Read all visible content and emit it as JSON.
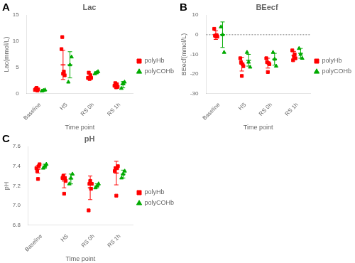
{
  "chart_data": [
    {
      "type": "scatter",
      "title": "Lac",
      "annotations": [
        "A"
      ],
      "x_label": "Time point",
      "y_label": "Lac(mmol/L)",
      "categories": [
        "Baseline",
        "HS",
        "RS 0h",
        "RS 1h"
      ],
      "ylim": [
        0,
        15
      ],
      "yticks": [
        0,
        5,
        10,
        15
      ],
      "grid": false,
      "legend": "right",
      "series": [
        {
          "name": "polyHb",
          "color": "#FF0000",
          "marker": "square",
          "values": [
            [
              0.7,
              0.9,
              1.1,
              0.6,
              0.8
            ],
            [
              8.5,
              10.8,
              3.8,
              4.2,
              3.5
            ],
            [
              3.0,
              4.0,
              2.8,
              3.5,
              3.0
            ],
            [
              1.5,
              2.0,
              1.2,
              1.8,
              1.3
            ]
          ],
          "mean": [
            0.82,
            5.5,
            3.3,
            1.6
          ],
          "error": [
            0.2,
            2.8,
            0.5,
            0.35
          ]
        },
        {
          "name": "polyCOHb",
          "color": "#00AA00",
          "marker": "triangle",
          "values": [
            [
              0.5,
              0.6,
              0.7
            ],
            [
              2.2,
              5.5,
              7.0
            ],
            [
              3.8,
              4.0,
              4.2
            ],
            [
              1.0,
              2.0,
              2.2
            ]
          ],
          "mean": [
            0.6,
            5.5,
            4.0,
            1.7
          ],
          "error": [
            0.1,
            2.5,
            0.2,
            0.6
          ]
        }
      ]
    },
    {
      "type": "scatter",
      "title": "BEecf",
      "annotations": [
        "B"
      ],
      "x_label": "Time point",
      "y_label": "BEecf(mmol/L)",
      "categories": [
        "Baseline",
        "HS",
        "RS 0h",
        "RS 1h"
      ],
      "ylim": [
        -30,
        10
      ],
      "yticks": [
        -30,
        -20,
        -10,
        0,
        10
      ],
      "grid": false,
      "legend": "right",
      "reference_lines": [
        {
          "y": 0,
          "color": "#808080",
          "line_style": "dotted"
        }
      ],
      "series": [
        {
          "name": "polyHb",
          "color": "#FF0000",
          "marker": "square",
          "values": [
            [
              3.0,
              -0.5,
              -0.8,
              -0.2,
              -1.0
            ],
            [
              -12.0,
              -14.0,
              -21.0,
              -15.0,
              -16.0
            ],
            [
              -12.0,
              -14.0,
              -19.0,
              -14.5,
              -15.0
            ],
            [
              -8.0,
              -13.0,
              -11.0,
              -10.0,
              -12.0
            ]
          ],
          "mean": [
            -0.2,
            -15.0,
            -14.5,
            -10.5
          ],
          "error": [
            2.2,
            3.5,
            2.5,
            2.0
          ]
        },
        {
          "name": "polyCOHb",
          "color": "#00AA00",
          "marker": "triangle",
          "values": [
            [
              4.0,
              0.0,
              -9.0
            ],
            [
              -9.0,
              -14.0,
              -16.5
            ],
            [
              -9.0,
              -12.5,
              -16.0
            ],
            [
              -7.0,
              -10.0,
              -12.0
            ]
          ],
          "mean": [
            0.0,
            -13.0,
            -12.5,
            -9.5
          ],
          "error": [
            6.5,
            3.0,
            3.0,
            2.5
          ]
        }
      ]
    },
    {
      "type": "scatter",
      "title": "pH",
      "annotations": [
        "C"
      ],
      "x_label": "Time point",
      "y_label": "pH",
      "categories": [
        "Baseline",
        "HS",
        "RS 0h",
        "RS 1h"
      ],
      "ylim": [
        6.8,
        7.6
      ],
      "yticks": [
        6.8,
        {
          "value": 7.0,
          "label": "7.0"
        },
        7.2,
        7.4,
        7.6
      ],
      "grid": false,
      "legend": "right",
      "series": [
        {
          "name": "polyHb",
          "color": "#FF0000",
          "marker": "square",
          "values": [
            [
              7.38,
              7.35,
              7.27,
              7.4,
              7.42
            ],
            [
              7.28,
              7.3,
              7.12,
              7.28,
              7.25
            ],
            [
              6.95,
              7.22,
              7.25,
              7.17,
              7.22
            ],
            [
              7.35,
              7.38,
              7.1,
              7.38,
              7.4
            ]
          ],
          "mean": [
            7.37,
            7.25,
            7.18,
            7.33
          ],
          "error": [
            0.04,
            0.07,
            0.12,
            0.12
          ]
        },
        {
          "name": "polyCOHb",
          "color": "#00AA00",
          "marker": "triangle",
          "values": [
            [
              7.38,
              7.4,
              7.42
            ],
            [
              7.22,
              7.28,
              7.32
            ],
            [
              7.18,
              7.2,
              7.22
            ],
            [
              7.28,
              7.32,
              7.35
            ]
          ],
          "mean": [
            7.4,
            7.27,
            7.2,
            7.32
          ],
          "error": [
            0.02,
            0.05,
            0.02,
            0.04
          ]
        }
      ]
    }
  ]
}
